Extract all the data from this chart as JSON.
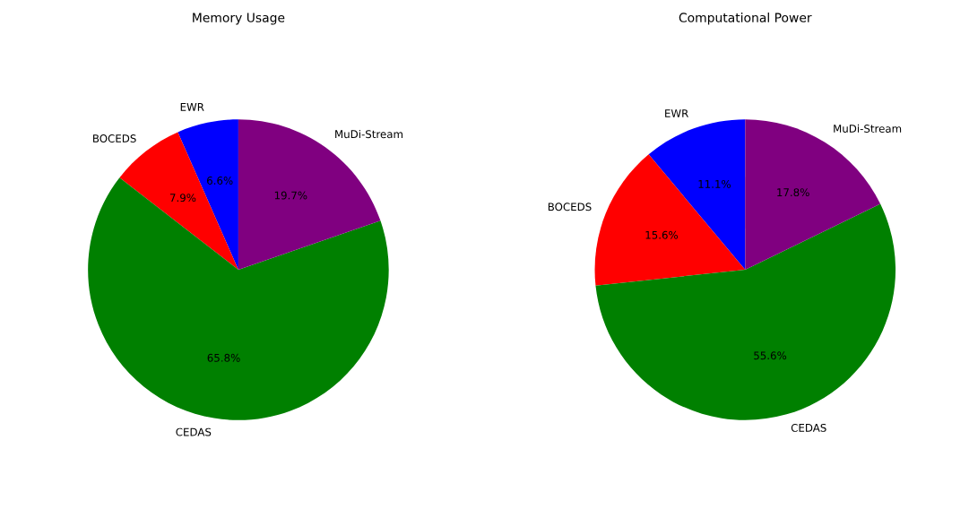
{
  "chart_data": [
    {
      "type": "pie",
      "title": "Memory Usage",
      "categories": [
        "EWR",
        "BOCEDS",
        "CEDAS",
        "MuDi-Stream"
      ],
      "values": [
        6.6,
        7.9,
        65.8,
        19.7
      ],
      "colors": [
        "#0000ff",
        "#ff0000",
        "#008000",
        "#800080"
      ],
      "value_labels": [
        "6.6%",
        "7.9%",
        "65.8%",
        "19.7%"
      ]
    },
    {
      "type": "pie",
      "title": "Computational Power",
      "categories": [
        "EWR",
        "BOCEDS",
        "CEDAS",
        "MuDi-Stream"
      ],
      "values": [
        11.1,
        15.6,
        55.6,
        17.8
      ],
      "colors": [
        "#0000ff",
        "#ff0000",
        "#008000",
        "#800080"
      ],
      "value_labels": [
        "11.1%",
        "15.6%",
        "55.6%",
        "17.8%"
      ]
    }
  ]
}
